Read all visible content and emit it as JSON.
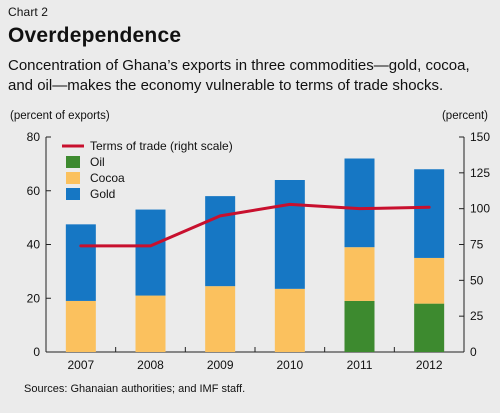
{
  "header": {
    "chart_number": "Chart 2",
    "title": "Overdependence",
    "subtitle": "Concentration of Ghana’s exports in three commodities—gold, cocoa, and oil—makes the economy vulnerable to terms of trade shocks."
  },
  "axes": {
    "left_unit": "(percent of exports)",
    "right_unit": "(percent)"
  },
  "footer": {
    "source": "Sources: Ghanaian authorities; and IMF staff."
  },
  "colors": {
    "oil": "#3d8a2f",
    "cocoa": "#fbc15e",
    "gold": "#1677c4",
    "terms_of_trade": "#c8102e",
    "background": "#ebebeb"
  },
  "chart_data": {
    "type": "bar",
    "stacked": true,
    "categories": [
      "2007",
      "2008",
      "2009",
      "2010",
      "2011",
      "2012"
    ],
    "series": [
      {
        "name": "Oil",
        "values": [
          0,
          0,
          0,
          0,
          19,
          18
        ]
      },
      {
        "name": "Cocoa",
        "values": [
          19,
          21,
          24.5,
          23.5,
          20,
          17
        ]
      },
      {
        "name": "Gold",
        "values": [
          28.5,
          32,
          33.5,
          40.5,
          33,
          33
        ]
      }
    ],
    "line_series": {
      "name": "Terms of trade (right scale)",
      "axis": "right",
      "values": [
        74,
        74,
        95,
        103,
        100,
        101
      ]
    },
    "legend_order": [
      "Terms of trade (right scale)",
      "Oil",
      "Cocoa",
      "Gold"
    ],
    "legend_placement": "top-left",
    "left_axis": {
      "range": [
        0,
        80
      ],
      "ticks": [
        "0",
        "20",
        "40",
        "60",
        "80"
      ]
    },
    "right_axis": {
      "range": [
        0,
        150
      ],
      "ticks": [
        "0",
        "25",
        "50",
        "75",
        "100",
        "125",
        "150"
      ]
    },
    "grid": false
  }
}
